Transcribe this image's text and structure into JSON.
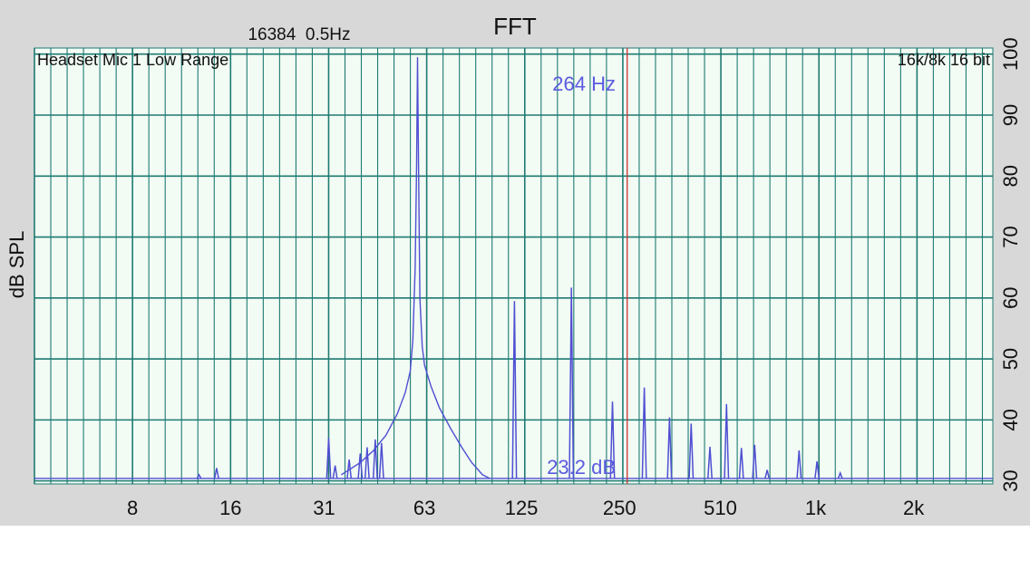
{
  "header": {
    "title": "FFT",
    "fft_info": "16384  0.5Hz",
    "device": "Headset Mic 1 Low Range",
    "format": "16k/8k 16 bit"
  },
  "chart_data": {
    "type": "line",
    "title": "FFT",
    "xlabel": "",
    "ylabel": "dB SPL",
    "x_scale": "log",
    "xlim": [
      4,
      3500
    ],
    "ylim": [
      29.5,
      101
    ],
    "x_ticks": [
      {
        "value": 8,
        "label": "8"
      },
      {
        "value": 16,
        "label": "16"
      },
      {
        "value": 31,
        "label": "31"
      },
      {
        "value": 63,
        "label": "63"
      },
      {
        "value": 125,
        "label": "125"
      },
      {
        "value": 250,
        "label": "250"
      },
      {
        "value": 510,
        "label": "510"
      },
      {
        "value": 1000,
        "label": "1k"
      },
      {
        "value": 2000,
        "label": "2k"
      }
    ],
    "y_ticks": [
      30,
      40,
      50,
      60,
      70,
      80,
      90,
      100
    ],
    "grid": true,
    "noise_floor_db": 30.4,
    "broadband_peak": {
      "center_hz": 60,
      "peak_db": 99.5
    },
    "broadband_shape": [
      [
        35,
        31.0
      ],
      [
        40,
        33.0
      ],
      [
        44,
        35.0
      ],
      [
        48,
        37.5
      ],
      [
        52,
        41.0
      ],
      [
        55,
        44.5
      ],
      [
        57,
        48.0
      ],
      [
        58,
        53.0
      ],
      [
        59,
        65.0
      ],
      [
        59.6,
        82.0
      ],
      [
        60,
        99.5
      ],
      [
        60.4,
        82.0
      ],
      [
        61,
        60.0
      ],
      [
        62,
        52.0
      ],
      [
        63,
        49.0
      ],
      [
        66,
        45.5
      ],
      [
        70,
        42.0
      ],
      [
        76,
        38.5
      ],
      [
        82,
        35.5
      ],
      [
        88,
        33.0
      ],
      [
        95,
        31.0
      ],
      [
        100,
        30.4
      ]
    ],
    "peaks": [
      {
        "freq_hz": 12.8,
        "db": 31.0
      },
      {
        "freq_hz": 14.5,
        "db": 32.1
      },
      {
        "freq_hz": 32.0,
        "db": 37.0
      },
      {
        "freq_hz": 33.5,
        "db": 32.5
      },
      {
        "freq_hz": 37.0,
        "db": 33.5
      },
      {
        "freq_hz": 40.0,
        "db": 34.5
      },
      {
        "freq_hz": 42.0,
        "db": 35.5
      },
      {
        "freq_hz": 44.5,
        "db": 36.8
      },
      {
        "freq_hz": 46.5,
        "db": 36.2
      },
      {
        "freq_hz": 119,
        "db": 59.5
      },
      {
        "freq_hz": 178,
        "db": 61.7
      },
      {
        "freq_hz": 238,
        "db": 43.0
      },
      {
        "freq_hz": 298,
        "db": 45.3
      },
      {
        "freq_hz": 356,
        "db": 40.4
      },
      {
        "freq_hz": 415,
        "db": 39.4
      },
      {
        "freq_hz": 474,
        "db": 35.6
      },
      {
        "freq_hz": 533,
        "db": 42.6
      },
      {
        "freq_hz": 592,
        "db": 35.4
      },
      {
        "freq_hz": 650,
        "db": 35.9
      },
      {
        "freq_hz": 710,
        "db": 31.8
      },
      {
        "freq_hz": 890,
        "db": 35.0
      },
      {
        "freq_hz": 1010,
        "db": 33.2
      },
      {
        "freq_hz": 1190,
        "db": 31.3
      }
    ],
    "cursor": {
      "freq_hz": 264,
      "freq_label": "264 Hz",
      "level_label": "23.2 dB"
    },
    "colors": {
      "plot_bg": "#f2fbf4",
      "grid": "#1e7b72",
      "trace": "#4f4fd2",
      "cursor": "#c83232",
      "cursor_text": "#5b5be0",
      "frame": "#d8d8d8"
    }
  }
}
